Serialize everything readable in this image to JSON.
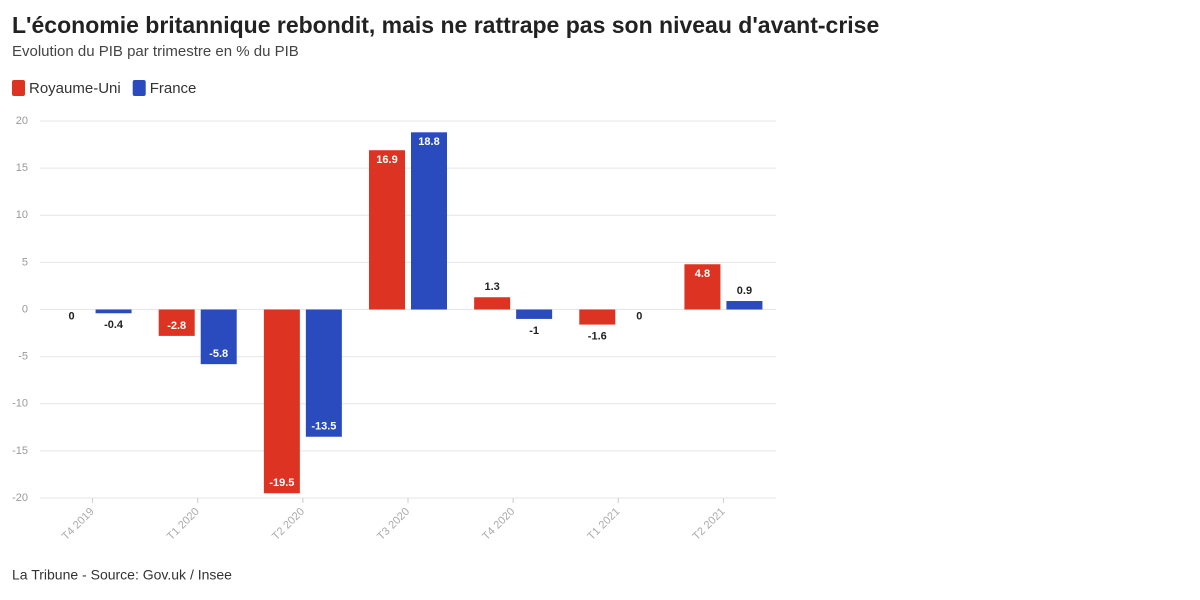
{
  "chart_data": {
    "type": "bar",
    "title": "L'économie britannique rebondit, mais ne rattrape pas son niveau d'avant-crise",
    "subtitle": "Evolution du PIB par trimestre en % du PIB",
    "source": "La Tribune - Source: Gov.uk / Insee",
    "categories": [
      "T4 2019",
      "T1 2020",
      "T2 2020",
      "T3 2020",
      "T4 2020",
      "T1 2021",
      "T2 2021"
    ],
    "series": [
      {
        "name": "Royaume-Uni",
        "color": "#dd3322",
        "values": [
          0,
          -2.8,
          -19.5,
          16.9,
          1.3,
          -1.6,
          4.8
        ]
      },
      {
        "name": "France",
        "color": "#2a4bbd",
        "values": [
          -0.4,
          -5.8,
          -13.5,
          18.8,
          -1,
          0,
          0.9
        ]
      }
    ],
    "ylim": [
      -20,
      20
    ],
    "yticks": [
      -20,
      -15,
      -10,
      -5,
      0,
      5,
      10,
      15,
      20
    ],
    "grid": true
  }
}
